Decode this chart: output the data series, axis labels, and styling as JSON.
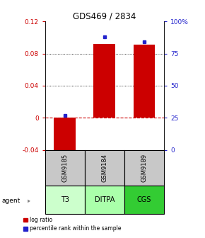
{
  "title": "GDS469 / 2834",
  "samples": [
    "GSM9185",
    "GSM9184",
    "GSM9189"
  ],
  "agents": [
    "T3",
    "DITPA",
    "CGS"
  ],
  "log_ratios": [
    -0.048,
    0.092,
    0.091
  ],
  "percentile_ranks": [
    0.27,
    0.88,
    0.84
  ],
  "ylim_left": [
    -0.04,
    0.12
  ],
  "yticks_left": [
    -0.04,
    0.0,
    0.04,
    0.08,
    0.12
  ],
  "ytick_labels_left": [
    "-0.04",
    "0",
    "0.04",
    "0.08",
    "0.12"
  ],
  "yticks_right": [
    0.0,
    0.25,
    0.5,
    0.75,
    1.0
  ],
  "ytick_labels_right": [
    "0",
    "25",
    "50",
    "75",
    "100%"
  ],
  "bar_color": "#cc0000",
  "dot_color": "#2222cc",
  "sample_bg": "#c8c8c8",
  "agent_bg_t3": "#ccffcc",
  "agent_bg_ditpa": "#aaffaa",
  "agent_bg_cgs": "#33cc33",
  "zero_line_color": "#cc0000",
  "grid_color": "#000000",
  "title_color": "#000000",
  "left_label_color": "#cc0000",
  "right_label_color": "#2222cc",
  "bar_width": 0.55
}
